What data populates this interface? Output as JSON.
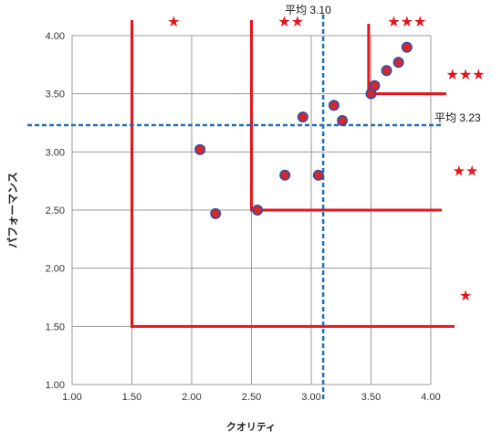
{
  "chart_data": {
    "type": "scatter",
    "xlabel": "クオリティ",
    "ylabel": "パフォーマンス",
    "xlim": [
      1.0,
      4.0
    ],
    "ylim": [
      1.0,
      4.0
    ],
    "x_ticks": [
      "1.00",
      "1.50",
      "2.00",
      "2.50",
      "3.00",
      "3.50",
      "4.00"
    ],
    "y_ticks": [
      "1.00",
      "1.50",
      "2.00",
      "2.50",
      "3.00",
      "3.50",
      "4.00"
    ],
    "grid": true,
    "legend": "none",
    "marker_color": "#d9262b",
    "marker_edge_color": "#2f4fa3",
    "points": [
      {
        "x": 2.07,
        "y": 3.02
      },
      {
        "x": 2.2,
        "y": 2.47
      },
      {
        "x": 2.55,
        "y": 2.5
      },
      {
        "x": 2.78,
        "y": 2.8
      },
      {
        "x": 2.93,
        "y": 3.3
      },
      {
        "x": 3.06,
        "y": 2.8
      },
      {
        "x": 3.19,
        "y": 3.4
      },
      {
        "x": 3.26,
        "y": 3.27
      },
      {
        "x": 3.5,
        "y": 3.5
      },
      {
        "x": 3.53,
        "y": 3.57
      },
      {
        "x": 3.63,
        "y": 3.7
      },
      {
        "x": 3.73,
        "y": 3.77
      },
      {
        "x": 3.8,
        "y": 3.9
      }
    ],
    "mean_lines": {
      "x": {
        "value": 3.1,
        "label": "平均 3.10"
      },
      "y": {
        "value": 3.23,
        "label": "平均 3.23"
      },
      "color": "#1f6fb8"
    },
    "tier_lines": {
      "color": "#e8141b",
      "tiers": [
        {
          "x": 1.5,
          "y": 1.5
        },
        {
          "x": 2.5,
          "y": 2.5
        },
        {
          "x": 3.48,
          "y": 3.5
        }
      ]
    },
    "star_color": "#e8141b",
    "star_annotations": [
      {
        "text": "★",
        "near": "top",
        "x": 1.85
      },
      {
        "text": "★★",
        "near": "top",
        "x": 2.83
      },
      {
        "text": "★★★",
        "near": "top",
        "x": 3.8
      },
      {
        "text": "★★★",
        "near": "right",
        "y": 3.67
      },
      {
        "text": "★★",
        "near": "right",
        "y": 2.84
      },
      {
        "text": "★",
        "near": "right",
        "y": 1.77
      }
    ]
  }
}
